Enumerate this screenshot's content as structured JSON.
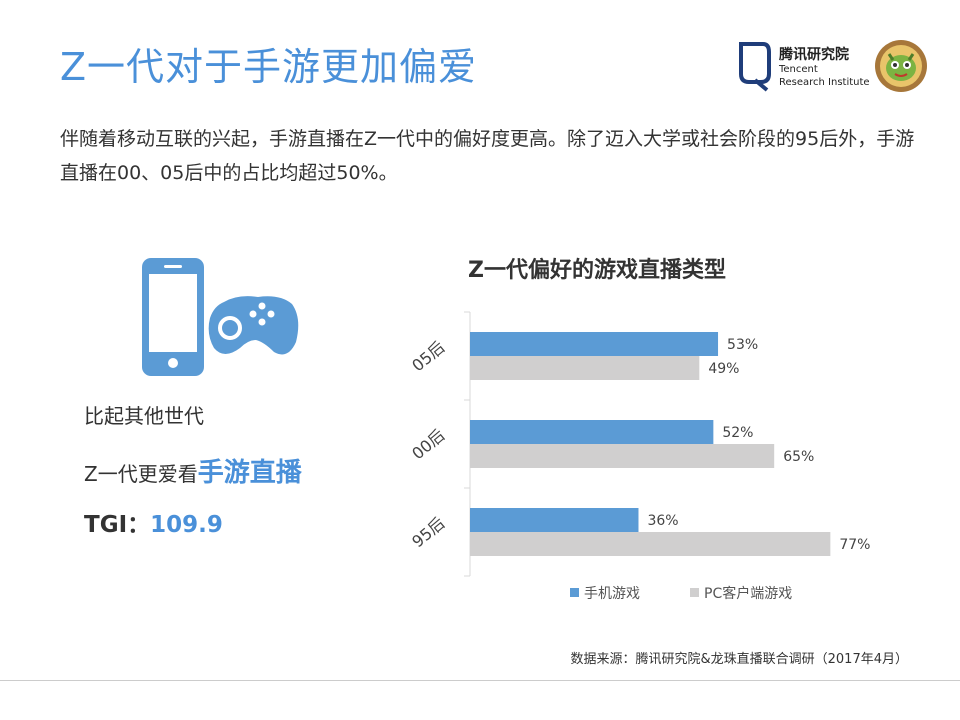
{
  "title": "Z一代对于手游更加偏爱",
  "logo": {
    "cn": "腾讯研究院",
    "en_line1": "Tencent",
    "en_line2": "Research Institute"
  },
  "intro": "伴随着移动互联的兴起，手游直播在Z一代中的偏好度更高。除了迈入大学或社会阶段的95后外，手游直播在00、05后中的占比均超过50%。",
  "stats": {
    "line1": "比起其他世代",
    "line2_prefix": "Z一代更爱看",
    "line2_highlight": "手游直播",
    "tgi_label": "TGI：",
    "tgi_value": "109.9"
  },
  "colors": {
    "accent": "#4a90d9",
    "mobile_series": "#5b9bd5",
    "pc_series": "#d0cfcf"
  },
  "chart_data": {
    "type": "bar",
    "orientation": "horizontal",
    "title": "Z一代偏好的游戏直播类型",
    "categories": [
      "05后",
      "00后",
      "95后"
    ],
    "series": [
      {
        "name": "手机游戏",
        "values": [
          53,
          52,
          36
        ]
      },
      {
        "name": "PC客户端游戏",
        "values": [
          49,
          65,
          77
        ]
      }
    ],
    "value_suffix": "%",
    "xlim": [
      0,
      80
    ],
    "grid": false,
    "legend_position": "bottom"
  },
  "source": "数据来源：腾讯研究院&龙珠直播联合调研（2017年4月）"
}
